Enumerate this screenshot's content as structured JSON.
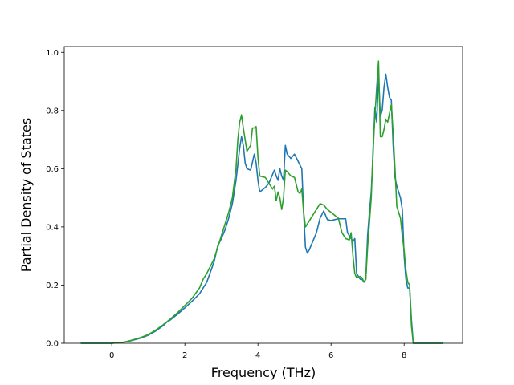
{
  "chart_data": {
    "type": "line",
    "title": "",
    "xlabel": "Frequency (THz)",
    "ylabel": "Partial Density of States",
    "xlim": [
      -1.3,
      9.6
    ],
    "ylim": [
      0.0,
      1.02
    ],
    "xticks": [
      0,
      2,
      4,
      6,
      8
    ],
    "yticks": [
      0.0,
      0.2,
      0.4,
      0.6,
      0.8,
      1.0
    ],
    "grid": false,
    "legend": "none",
    "series": [
      {
        "color": "#1f77b4",
        "points": [
          [
            -0.85,
            0.0
          ],
          [
            0.0,
            0.0
          ],
          [
            0.3,
            0.003
          ],
          [
            0.5,
            0.008
          ],
          [
            0.8,
            0.018
          ],
          [
            1.0,
            0.028
          ],
          [
            1.2,
            0.042
          ],
          [
            1.4,
            0.06
          ],
          [
            1.5,
            0.072
          ],
          [
            1.6,
            0.08
          ],
          [
            1.8,
            0.1
          ],
          [
            2.0,
            0.122
          ],
          [
            2.2,
            0.145
          ],
          [
            2.4,
            0.17
          ],
          [
            2.6,
            0.21
          ],
          [
            2.8,
            0.28
          ],
          [
            2.9,
            0.335
          ],
          [
            3.0,
            0.36
          ],
          [
            3.1,
            0.39
          ],
          [
            3.2,
            0.43
          ],
          [
            3.3,
            0.48
          ],
          [
            3.4,
            0.56
          ],
          [
            3.5,
            0.67
          ],
          [
            3.55,
            0.71
          ],
          [
            3.6,
            0.68
          ],
          [
            3.65,
            0.62
          ],
          [
            3.7,
            0.6
          ],
          [
            3.8,
            0.595
          ],
          [
            3.9,
            0.65
          ],
          [
            3.95,
            0.62
          ],
          [
            4.0,
            0.56
          ],
          [
            4.05,
            0.52
          ],
          [
            4.2,
            0.535
          ],
          [
            4.3,
            0.55
          ],
          [
            4.4,
            0.58
          ],
          [
            4.45,
            0.595
          ],
          [
            4.5,
            0.575
          ],
          [
            4.55,
            0.56
          ],
          [
            4.6,
            0.6
          ],
          [
            4.65,
            0.575
          ],
          [
            4.7,
            0.56
          ],
          [
            4.75,
            0.68
          ],
          [
            4.8,
            0.65
          ],
          [
            4.9,
            0.635
          ],
          [
            5.0,
            0.65
          ],
          [
            5.1,
            0.625
          ],
          [
            5.2,
            0.6
          ],
          [
            5.25,
            0.45
          ],
          [
            5.3,
            0.33
          ],
          [
            5.35,
            0.31
          ],
          [
            5.4,
            0.32
          ],
          [
            5.5,
            0.35
          ],
          [
            5.6,
            0.38
          ],
          [
            5.7,
            0.43
          ],
          [
            5.8,
            0.455
          ],
          [
            5.9,
            0.425
          ],
          [
            6.0,
            0.422
          ],
          [
            6.1,
            0.425
          ],
          [
            6.2,
            0.428
          ],
          [
            6.3,
            0.428
          ],
          [
            6.4,
            0.428
          ],
          [
            6.45,
            0.38
          ],
          [
            6.5,
            0.37
          ],
          [
            6.6,
            0.35
          ],
          [
            6.65,
            0.36
          ],
          [
            6.7,
            0.24
          ],
          [
            6.8,
            0.22
          ],
          [
            6.85,
            0.22
          ],
          [
            6.9,
            0.21
          ],
          [
            6.95,
            0.22
          ],
          [
            7.0,
            0.37
          ],
          [
            7.05,
            0.45
          ],
          [
            7.1,
            0.52
          ],
          [
            7.15,
            0.65
          ],
          [
            7.2,
            0.81
          ],
          [
            7.25,
            0.76
          ],
          [
            7.3,
            0.92
          ],
          [
            7.35,
            0.78
          ],
          [
            7.4,
            0.8
          ],
          [
            7.45,
            0.88
          ],
          [
            7.5,
            0.925
          ],
          [
            7.55,
            0.88
          ],
          [
            7.6,
            0.845
          ],
          [
            7.65,
            0.835
          ],
          [
            7.7,
            0.68
          ],
          [
            7.75,
            0.57
          ],
          [
            7.8,
            0.54
          ],
          [
            7.9,
            0.5
          ],
          [
            7.95,
            0.46
          ],
          [
            8.0,
            0.3
          ],
          [
            8.05,
            0.22
          ],
          [
            8.1,
            0.19
          ],
          [
            8.15,
            0.19
          ],
          [
            8.2,
            0.08
          ],
          [
            8.25,
            0.0
          ],
          [
            9.05,
            0.0
          ]
        ]
      },
      {
        "color": "#2ca02c",
        "points": [
          [
            -0.85,
            0.0
          ],
          [
            0.0,
            0.0
          ],
          [
            0.3,
            0.003
          ],
          [
            0.5,
            0.009
          ],
          [
            0.8,
            0.02
          ],
          [
            1.0,
            0.03
          ],
          [
            1.2,
            0.045
          ],
          [
            1.4,
            0.063
          ],
          [
            1.6,
            0.083
          ],
          [
            1.8,
            0.105
          ],
          [
            2.0,
            0.13
          ],
          [
            2.2,
            0.155
          ],
          [
            2.4,
            0.19
          ],
          [
            2.5,
            0.22
          ],
          [
            2.6,
            0.24
          ],
          [
            2.8,
            0.29
          ],
          [
            3.0,
            0.37
          ],
          [
            3.2,
            0.45
          ],
          [
            3.3,
            0.5
          ],
          [
            3.4,
            0.6
          ],
          [
            3.45,
            0.7
          ],
          [
            3.5,
            0.76
          ],
          [
            3.55,
            0.785
          ],
          [
            3.6,
            0.74
          ],
          [
            3.7,
            0.66
          ],
          [
            3.8,
            0.68
          ],
          [
            3.85,
            0.74
          ],
          [
            3.9,
            0.74
          ],
          [
            3.95,
            0.745
          ],
          [
            4.0,
            0.64
          ],
          [
            4.05,
            0.575
          ],
          [
            4.2,
            0.57
          ],
          [
            4.3,
            0.55
          ],
          [
            4.4,
            0.53
          ],
          [
            4.45,
            0.54
          ],
          [
            4.5,
            0.49
          ],
          [
            4.55,
            0.52
          ],
          [
            4.6,
            0.5
          ],
          [
            4.65,
            0.46
          ],
          [
            4.7,
            0.5
          ],
          [
            4.75,
            0.595
          ],
          [
            4.8,
            0.59
          ],
          [
            4.9,
            0.575
          ],
          [
            5.0,
            0.57
          ],
          [
            5.1,
            0.52
          ],
          [
            5.15,
            0.515
          ],
          [
            5.2,
            0.53
          ],
          [
            5.25,
            0.45
          ],
          [
            5.3,
            0.4
          ],
          [
            5.4,
            0.42
          ],
          [
            5.5,
            0.44
          ],
          [
            5.6,
            0.46
          ],
          [
            5.7,
            0.48
          ],
          [
            5.8,
            0.475
          ],
          [
            5.9,
            0.46
          ],
          [
            6.0,
            0.45
          ],
          [
            6.1,
            0.44
          ],
          [
            6.2,
            0.43
          ],
          [
            6.3,
            0.38
          ],
          [
            6.4,
            0.36
          ],
          [
            6.5,
            0.355
          ],
          [
            6.55,
            0.38
          ],
          [
            6.6,
            0.3
          ],
          [
            6.65,
            0.24
          ],
          [
            6.7,
            0.225
          ],
          [
            6.8,
            0.23
          ],
          [
            6.85,
            0.225
          ],
          [
            6.9,
            0.21
          ],
          [
            6.95,
            0.22
          ],
          [
            7.0,
            0.33
          ],
          [
            7.1,
            0.5
          ],
          [
            7.15,
            0.67
          ],
          [
            7.2,
            0.78
          ],
          [
            7.25,
            0.88
          ],
          [
            7.3,
            0.97
          ],
          [
            7.35,
            0.71
          ],
          [
            7.4,
            0.71
          ],
          [
            7.45,
            0.735
          ],
          [
            7.5,
            0.77
          ],
          [
            7.55,
            0.76
          ],
          [
            7.6,
            0.79
          ],
          [
            7.65,
            0.82
          ],
          [
            7.7,
            0.72
          ],
          [
            7.75,
            0.6
          ],
          [
            7.8,
            0.47
          ],
          [
            7.9,
            0.43
          ],
          [
            7.95,
            0.37
          ],
          [
            8.0,
            0.32
          ],
          [
            8.05,
            0.25
          ],
          [
            8.1,
            0.21
          ],
          [
            8.15,
            0.2
          ],
          [
            8.2,
            0.06
          ],
          [
            8.25,
            0.0
          ],
          [
            9.05,
            0.0
          ]
        ]
      }
    ]
  }
}
